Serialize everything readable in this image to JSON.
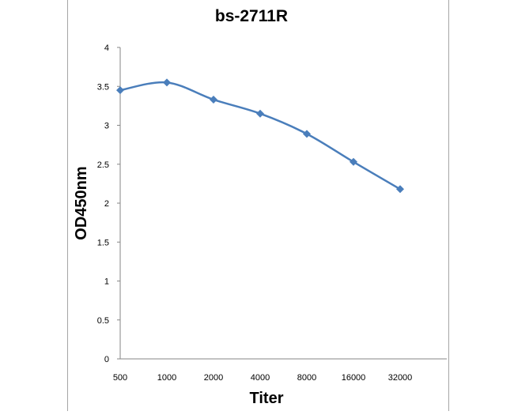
{
  "chart_data": {
    "type": "line",
    "title": "bs-2711R",
    "xlabel": "Titer",
    "ylabel": "OD450nm",
    "categories": [
      "500",
      "1000",
      "2000",
      "4000",
      "8000",
      "16000",
      "32000"
    ],
    "series": [
      {
        "values": [
          3.45,
          3.55,
          3.33,
          3.15,
          2.89,
          2.53,
          2.18
        ]
      }
    ],
    "ylim": [
      0,
      4
    ],
    "yticks": [
      "0",
      "0.5",
      "1",
      "1.5",
      "2",
      "2.5",
      "3",
      "3.5",
      "4"
    ],
    "grid": false,
    "legend": "none",
    "colors": {
      "series": "#4a7ebb",
      "axis": "#868686"
    }
  }
}
